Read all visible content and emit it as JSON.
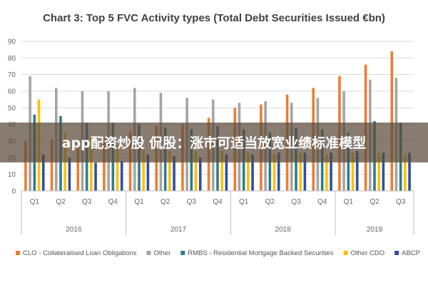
{
  "chart_data": {
    "type": "bar",
    "title": "Chart 3: Top 5 FVC Activity types (Total Debt Securities Issued €bn)",
    "xlabel": "",
    "ylabel": "",
    "ylim": [
      0,
      90
    ],
    "yticks": [
      0,
      10,
      20,
      30,
      40,
      50,
      60,
      70,
      80,
      90
    ],
    "grid": true,
    "legend_position": "bottom",
    "categories": [
      "Q1",
      "Q2",
      "Q3",
      "Q4",
      "Q1",
      "Q2",
      "Q3",
      "Q4",
      "Q1",
      "Q2",
      "Q3",
      "Q4",
      "Q1",
      "Q2",
      "Q3"
    ],
    "years": [
      {
        "label": "2016",
        "span": 4
      },
      {
        "label": "2017",
        "span": 4
      },
      {
        "label": "2018",
        "span": 4
      },
      {
        "label": "2019",
        "span": 3
      }
    ],
    "series": [
      {
        "name": "CLO - Collateralised Loan Obligations",
        "color": "#ed7d31",
        "values": [
          30,
          31,
          31,
          32,
          36,
          39,
          40,
          44,
          50,
          52,
          58,
          62,
          69,
          76,
          84
        ]
      },
      {
        "name": "Other",
        "color": "#a5a5a5",
        "values": [
          69,
          62,
          60,
          60,
          62,
          59,
          56,
          55,
          53,
          54,
          53,
          56,
          60,
          67,
          68
        ]
      },
      {
        "name": "RMBS - Residential Mortgage Backed Securities",
        "color": "#2e7d8c",
        "values": [
          46,
          45,
          41,
          41,
          40,
          38,
          37,
          39,
          37,
          35,
          38,
          37,
          35,
          42,
          41
        ]
      },
      {
        "name": "Other CDO",
        "color": "#ffc000",
        "values": [
          55,
          35,
          33,
          27,
          25,
          24,
          24,
          24,
          23,
          22,
          23,
          22,
          23,
          23,
          22
        ]
      },
      {
        "name": "ABCP",
        "color": "#2f4fa2",
        "values": [
          22,
          20,
          17,
          18,
          22,
          21,
          20,
          22,
          22,
          23,
          23,
          23,
          24,
          23,
          23
        ]
      }
    ]
  },
  "overlay": {
    "banner_text": "app配资炒股 侃股：涨市可适当放宽业绩标准模型"
  }
}
